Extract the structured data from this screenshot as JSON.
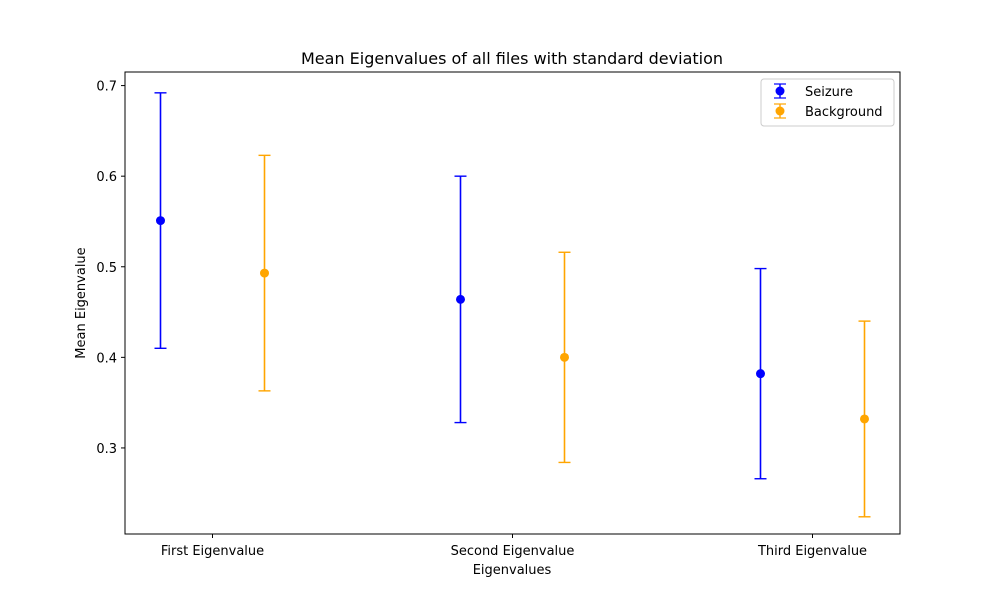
{
  "chart_data": {
    "type": "scatter",
    "title": "Mean Eigenvalues of all files with standard deviation",
    "xlabel": "Eigenvalues",
    "ylabel": "Mean Eigenvalue",
    "categories": [
      "First Eigenvalue",
      "Second Eigenvalue",
      "Third Eigenvalue"
    ],
    "yticks": [
      "0.3",
      "0.4",
      "0.5",
      "0.6",
      "0.7"
    ],
    "ylim": [
      0.205,
      0.715
    ],
    "grid": false,
    "legend_position": "top-right",
    "series": [
      {
        "name": "Seizure",
        "color": "#0000ff",
        "values": [
          0.551,
          0.464,
          0.382
        ],
        "std": [
          0.141,
          0.136,
          0.116
        ]
      },
      {
        "name": "Background",
        "color": "#ffa500",
        "values": [
          0.493,
          0.4,
          0.332
        ],
        "std": [
          0.13,
          0.116,
          0.108
        ]
      }
    ]
  }
}
